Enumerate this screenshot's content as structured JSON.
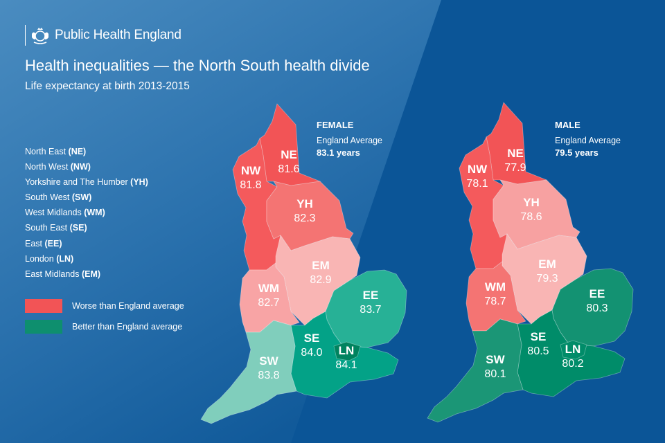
{
  "header": {
    "organisation": "Public Health England",
    "title": "Health inequalities — the North South health divide",
    "subtitle": "Life expectancy at birth 2013-2015"
  },
  "region_legend": [
    {
      "name": "North East ",
      "code": "(NE)"
    },
    {
      "name": "North West ",
      "code": "(NW)"
    },
    {
      "name": "Yorkshire and The Humber ",
      "code": "(YH)"
    },
    {
      "name": "South West ",
      "code": "(SW)"
    },
    {
      "name": "West Midlands ",
      "code": "(WM)"
    },
    {
      "name": "South East ",
      "code": "(SE)"
    },
    {
      "name": "East ",
      "code": "(EE)"
    },
    {
      "name": "London ",
      "code": "(LN)"
    },
    {
      "name": "East Midlands ",
      "code": "(EM)"
    }
  ],
  "color_legend": [
    {
      "label": "Worse than England average",
      "color": "#f25456"
    },
    {
      "label": "Better than England average",
      "color": "#0e8f6e"
    }
  ],
  "maps": [
    {
      "sex": "FEMALE",
      "average_label": "England Average",
      "average_value": "83.1 years",
      "regions": {
        "NE": {
          "code": "NE",
          "value": "81.6",
          "color": "#f25456"
        },
        "NW": {
          "code": "NW",
          "value": "81.8",
          "color": "#f45a5c"
        },
        "YH": {
          "code": "YH",
          "value": "82.3",
          "color": "#f47473"
        },
        "EM": {
          "code": "EM",
          "value": "82.9",
          "color": "#f9b5b4"
        },
        "WM": {
          "code": "WM",
          "value": "82.7",
          "color": "#f8a4a5"
        },
        "EE": {
          "code": "EE",
          "value": "83.7",
          "color": "#27b196"
        },
        "SE": {
          "code": "SE",
          "value": "84.0",
          "color": "#03a287"
        },
        "LN": {
          "code": "LN",
          "value": "84.1",
          "color": "#00835f"
        },
        "SW": {
          "code": "SW",
          "value": "83.8",
          "color": "#80cebc"
        }
      }
    },
    {
      "sex": "MALE",
      "average_label": "England Average",
      "average_value": "79.5 years",
      "regions": {
        "NE": {
          "code": "NE",
          "value": "77.9",
          "color": "#f25456"
        },
        "NW": {
          "code": "NW",
          "value": "78.1",
          "color": "#f45a5c"
        },
        "YH": {
          "code": "YH",
          "value": "78.6",
          "color": "#f7a1a1"
        },
        "EM": {
          "code": "EM",
          "value": "79.3",
          "color": "#f9b5b4"
        },
        "WM": {
          "code": "WM",
          "value": "78.7",
          "color": "#f47473"
        },
        "EE": {
          "code": "EE",
          "value": "80.3",
          "color": "#139272"
        },
        "SE": {
          "code": "SE",
          "value": "80.5",
          "color": "#008c69"
        },
        "LN": {
          "code": "LN",
          "value": "80.2",
          "color": "#008c69"
        },
        "SW": {
          "code": "SW",
          "value": "80.1",
          "color": "#1b9676"
        }
      }
    }
  ]
}
